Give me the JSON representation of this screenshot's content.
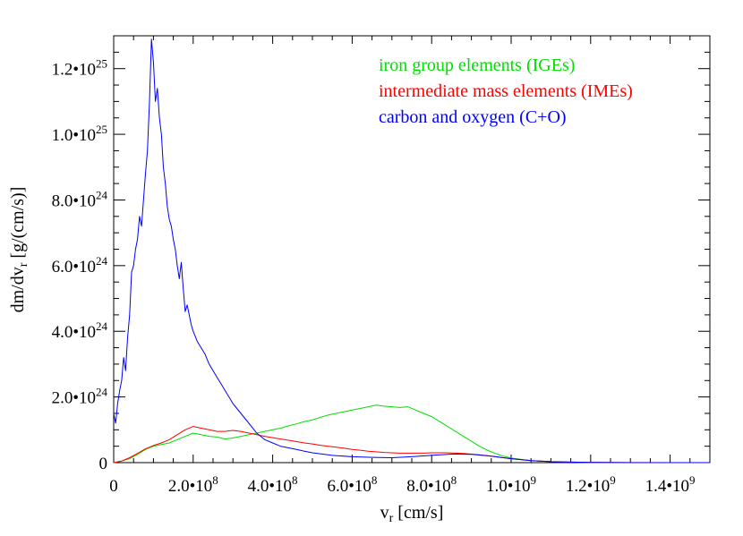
{
  "chart_data": {
    "type": "line",
    "xlabel": "v",
    "xlabel_sub": "r",
    "xlabel_unit": " [cm/s]",
    "ylabel": "dm/dv",
    "ylabel_sub": "r",
    "ylabel_unit": " [g/(cm/s)]",
    "xlim": [
      0,
      1500000000
    ],
    "ylim": [
      0,
      1.3e+25
    ],
    "x_ticks": [
      {
        "value": 0,
        "label": "0",
        "exp": ""
      },
      {
        "value": 200000000,
        "label": "2.0•10",
        "exp": "8"
      },
      {
        "value": 400000000,
        "label": "4.0•10",
        "exp": "8"
      },
      {
        "value": 600000000,
        "label": "6.0•10",
        "exp": "8"
      },
      {
        "value": 800000000,
        "label": "8.0•10",
        "exp": "8"
      },
      {
        "value": 1000000000,
        "label": "1.0•10",
        "exp": "9"
      },
      {
        "value": 1200000000,
        "label": "1.2•10",
        "exp": "9"
      },
      {
        "value": 1400000000,
        "label": "1.4•10",
        "exp": "9"
      }
    ],
    "y_ticks": [
      {
        "value": 0,
        "label": "0",
        "exp": ""
      },
      {
        "value": 2e+24,
        "label": "2.0•10",
        "exp": "24"
      },
      {
        "value": 4e+24,
        "label": "4.0•10",
        "exp": "24"
      },
      {
        "value": 6e+24,
        "label": "6.0•10",
        "exp": "24"
      },
      {
        "value": 8e+24,
        "label": "8.0•10",
        "exp": "24"
      },
      {
        "value": 1e+25,
        "label": "1.0•10",
        "exp": "25"
      },
      {
        "value": 1.2e+25,
        "label": "1.2•10",
        "exp": "25"
      }
    ],
    "grid": false,
    "legend_position": "top-right",
    "x_units": "cm/s",
    "series": [
      {
        "name": "iron group elements  (IGEs)",
        "color": "#00e000",
        "x": [
          0,
          20000000,
          40000000,
          60000000,
          80000000,
          100000000,
          120000000,
          140000000,
          160000000,
          180000000,
          200000000,
          220000000,
          240000000,
          260000000,
          280000000,
          300000000,
          320000000,
          340000000,
          360000000,
          380000000,
          400000000,
          420000000,
          440000000,
          460000000,
          480000000,
          500000000,
          520000000,
          540000000,
          560000000,
          580000000,
          600000000,
          620000000,
          640000000,
          660000000,
          680000000,
          700000000,
          720000000,
          740000000,
          760000000,
          780000000,
          800000000,
          820000000,
          840000000,
          860000000,
          880000000,
          900000000,
          920000000,
          940000000,
          960000000,
          980000000,
          1000000000,
          1050000000,
          1100000000,
          1150000000,
          1200000000,
          1250000000,
          1300000000,
          1400000000,
          1500000000
        ],
        "values": [
          0,
          5e+22,
          1.2e+23,
          2.5e+23,
          4e+23,
          5e+23,
          5.5e+23,
          6e+23,
          7e+23,
          8e+23,
          9e+23,
          8.5e+23,
          8e+23,
          7.8e+23,
          7.2e+23,
          7.5e+23,
          8e+23,
          8.5e+23,
          9e+23,
          9.5e+23,
          1e+24,
          1.05e+24,
          1.12e+24,
          1.18e+24,
          1.25e+24,
          1.3e+24,
          1.38e+24,
          1.45e+24,
          1.5e+24,
          1.55e+24,
          1.6e+24,
          1.65e+24,
          1.7e+24,
          1.75e+24,
          1.72e+24,
          1.7e+24,
          1.68e+24,
          1.7e+24,
          1.6e+24,
          1.5e+24,
          1.4e+24,
          1.25e+24,
          1.1e+24,
          9.5e+23,
          8e+23,
          6.5e+23,
          5e+23,
          3.8e+23,
          2.8e+23,
          2e+23,
          1.4e+23,
          6e+22,
          3e+22,
          1.5e+22,
          5e+21,
          2e+21,
          1e+21,
          0,
          0
        ]
      },
      {
        "name": "intermediate mass elements  (IMEs)",
        "color": "#ff0000",
        "x": [
          0,
          20000000,
          40000000,
          60000000,
          80000000,
          100000000,
          120000000,
          140000000,
          160000000,
          180000000,
          200000000,
          220000000,
          240000000,
          260000000,
          280000000,
          300000000,
          320000000,
          340000000,
          360000000,
          380000000,
          400000000,
          420000000,
          440000000,
          460000000,
          480000000,
          500000000,
          520000000,
          540000000,
          560000000,
          580000000,
          600000000,
          620000000,
          640000000,
          660000000,
          680000000,
          700000000,
          720000000,
          740000000,
          760000000,
          780000000,
          800000000,
          820000000,
          840000000,
          860000000,
          880000000,
          900000000,
          920000000,
          940000000,
          960000000,
          980000000,
          1000000000,
          1050000000,
          1100000000,
          1150000000,
          1200000000,
          1300000000,
          1400000000,
          1500000000
        ],
        "values": [
          0,
          5e+22,
          1.5e+23,
          2.8e+23,
          4.2e+23,
          5.2e+23,
          6e+23,
          7e+23,
          8.5e+23,
          1e+24,
          1.1e+24,
          1.05e+24,
          1e+24,
          9.5e+23,
          9.5e+23,
          9.8e+23,
          9.5e+23,
          9e+23,
          8.5e+23,
          8e+23,
          7.6e+23,
          7.2e+23,
          6.8e+23,
          6.4e+23,
          6e+23,
          5.7e+23,
          5.3e+23,
          5e+23,
          4.7e+23,
          4.4e+23,
          4e+23,
          3.8e+23,
          3.5e+23,
          3.3e+23,
          3.1e+23,
          3e+23,
          2.9e+23,
          2.9e+23,
          2.9e+23,
          2.9e+23,
          3e+23,
          3e+23,
          3e+23,
          2.9e+23,
          2.8e+23,
          2.6e+23,
          2.4e+23,
          2.1e+23,
          1.8e+23,
          1.5e+23,
          1.2e+23,
          6e+22,
          3e+22,
          1.5e+22,
          8e+21,
          2e+21,
          0,
          0
        ]
      },
      {
        "name": "carbon and oxygen  (C+O)",
        "color": "#0000ff",
        "x": [
          0,
          5000000,
          10000000,
          15000000,
          20000000,
          25000000,
          30000000,
          35000000,
          40000000,
          45000000,
          50000000,
          55000000,
          60000000,
          65000000,
          70000000,
          75000000,
          80000000,
          85000000,
          90000000,
          95000000,
          100000000,
          105000000,
          110000000,
          115000000,
          120000000,
          125000000,
          130000000,
          135000000,
          140000000,
          145000000,
          150000000,
          155000000,
          160000000,
          165000000,
          170000000,
          175000000,
          180000000,
          185000000,
          190000000,
          195000000,
          200000000,
          210000000,
          220000000,
          230000000,
          240000000,
          250000000,
          260000000,
          270000000,
          280000000,
          290000000,
          300000000,
          320000000,
          340000000,
          360000000,
          380000000,
          400000000,
          420000000,
          440000000,
          460000000,
          480000000,
          500000000,
          550000000,
          600000000,
          650000000,
          700000000,
          750000000,
          800000000,
          850000000,
          900000000,
          950000000,
          1000000000,
          1050000000,
          1100000000,
          1150000000,
          1200000000,
          1300000000,
          1400000000,
          1500000000
        ],
        "values": [
          1.5e+24,
          1.2e+24,
          1.8e+24,
          2.2e+24,
          2.5e+24,
          3.2e+24,
          2.8e+24,
          3.8e+24,
          4.5e+24,
          5.8e+24,
          6e+24,
          6.5e+24,
          6.8e+24,
          7.5e+24,
          7.2e+24,
          8e+24,
          8.8e+24,
          9.5e+24,
          1.1e+25,
          1.29e+25,
          1.22e+25,
          1.1e+25,
          1.14e+25,
          1.05e+25,
          1e+25,
          9e+24,
          8.5e+24,
          7.8e+24,
          7.4e+24,
          7.2e+24,
          6.8e+24,
          6.5e+24,
          6e+24,
          5.6e+24,
          6.1e+24,
          5.3e+24,
          4.6e+24,
          4.8e+24,
          4.5e+24,
          4.2e+24,
          4e+24,
          3.7e+24,
          3.5e+24,
          3.3e+24,
          3e+24,
          2.8e+24,
          2.6e+24,
          2.4e+24,
          2.2e+24,
          2e+24,
          1.8e+24,
          1.5e+24,
          1.2e+24,
          9e+23,
          7e+23,
          6e+23,
          5e+23,
          4.5e+23,
          4e+23,
          3.5e+23,
          3e+23,
          2.2e+23,
          1.8e+23,
          1.6e+23,
          1.5e+23,
          1.8e+23,
          2.2e+23,
          2.6e+23,
          2.5e+23,
          2e+23,
          1.2e+23,
          6e+22,
          3e+22,
          1.5e+22,
          5e+21,
          0,
          0,
          0
        ]
      }
    ]
  }
}
